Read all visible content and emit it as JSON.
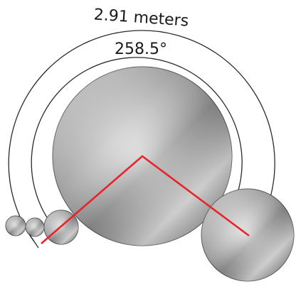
{
  "arc_length_label": "2.91 meters",
  "angle_label": "258.5°",
  "colors": {
    "line": "#e8232a",
    "arc": "#2a2a2a",
    "disc_edge": "#4d4d4d",
    "arrow": "#1f1f1f"
  }
}
